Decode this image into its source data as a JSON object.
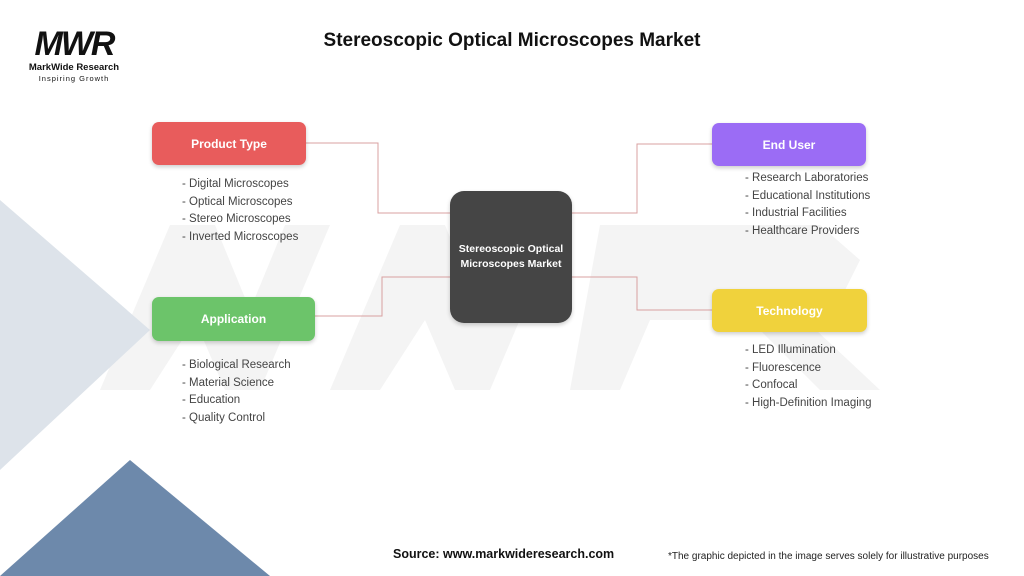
{
  "logo": {
    "mark": "MWR",
    "name": "MarkWide Research",
    "tagline": "Inspiring Growth"
  },
  "title": "Stereoscopic Optical Microscopes Market",
  "center": "Stereoscopic Optical Microscopes Market",
  "categories": [
    {
      "label": "Product Type",
      "color": "#e85c5c",
      "items": [
        "- Digital Microscopes",
        "- Optical Microscopes",
        "- Stereo Microscopes",
        "- Inverted Microscopes"
      ]
    },
    {
      "label": "Application",
      "color": "#6cc46a",
      "items": [
        "- Biological Research",
        "- Material Science",
        "- Education",
        "- Quality Control"
      ]
    },
    {
      "label": "End User",
      "color": "#9b6cf5",
      "items": [
        "- Research Laboratories",
        "- Educational Institutions",
        "- Industrial Facilities",
        "- Healthcare Providers"
      ]
    },
    {
      "label": "Technology",
      "color": "#f0d23c",
      "items": [
        "- LED Illumination",
        "- Fluorescence",
        "- Confocal",
        "- High-Definition Imaging"
      ]
    }
  ],
  "source": "Source: www.markwideresearch.com",
  "note": "*The graphic depicted in the image serves solely for illustrative purposes"
}
